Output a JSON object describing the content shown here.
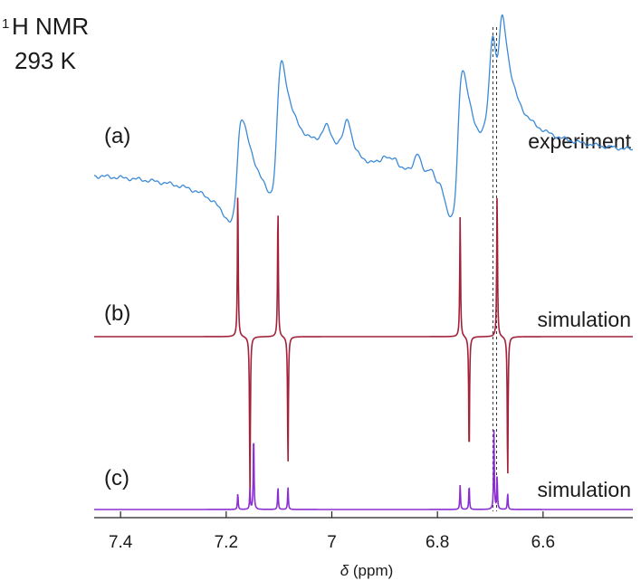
{
  "chart_data": {
    "type": "line",
    "title_line1_sup": "1",
    "title_line1": "H NMR",
    "title_line2": "293 K",
    "xlabel_symbol": "δ",
    "xlabel_unit": " (ppm)",
    "xlim": [
      7.45,
      6.43
    ],
    "x_direction": "reversed",
    "xticks": [
      7.4,
      7.2,
      7,
      6.8,
      6.6
    ],
    "xtick_labels": [
      "7.4",
      "7.2",
      "7",
      "6.8",
      "6.6"
    ],
    "reference_lines_ppm": [
      6.695,
      6.688
    ],
    "panels": [
      {
        "id": "a",
        "label": "(a)",
        "name": "experiment",
        "color": "#3b8ad8",
        "kind": "absorption-dispersion mixed experimental",
        "baseline_offset": 0,
        "peaks": [
          {
            "x": 7.178,
            "dispersion": -0.95,
            "absorption": 0.3,
            "width": 0.011
          },
          {
            "x": 7.102,
            "dispersion": -1.15,
            "absorption": 0.5,
            "width": 0.011
          },
          {
            "x": 7.01,
            "dispersion": 0.0,
            "absorption": 0.22,
            "width": 0.012
          },
          {
            "x": 6.97,
            "dispersion": 0.0,
            "absorption": 0.35,
            "width": 0.01
          },
          {
            "x": 6.9,
            "dispersion": 0.0,
            "absorption": 0.1,
            "width": 0.009
          },
          {
            "x": 6.88,
            "dispersion": 0.0,
            "absorption": 0.1,
            "width": 0.009
          },
          {
            "x": 6.838,
            "dispersion": 0.0,
            "absorption": 0.24,
            "width": 0.009
          },
          {
            "x": 6.812,
            "dispersion": 0.0,
            "absorption": 0.18,
            "width": 0.009
          },
          {
            "x": 6.792,
            "dispersion": 0.0,
            "absorption": 0.14,
            "width": 0.009
          },
          {
            "x": 6.76,
            "dispersion": -1.35,
            "absorption": 0.45,
            "width": 0.011
          },
          {
            "x": 6.696,
            "dispersion": -0.25,
            "absorption": 1.25,
            "width": 0.01
          },
          {
            "x": 6.682,
            "dispersion": -1.05,
            "absorption": 0.4,
            "width": 0.01
          }
        ]
      },
      {
        "id": "b",
        "label": "(b)",
        "name": "simulation",
        "color": "#a3223a",
        "kind": "antiphase doublets",
        "peaks": [
          {
            "x": 7.178,
            "amp": 1.65
          },
          {
            "x": 7.155,
            "amp": -1.75
          },
          {
            "x": 7.102,
            "amp": 1.45
          },
          {
            "x": 7.083,
            "amp": -1.45
          },
          {
            "x": 6.757,
            "amp": 1.35
          },
          {
            "x": 6.74,
            "amp": -1.35
          },
          {
            "x": 6.687,
            "amp": 1.6
          },
          {
            "x": 6.667,
            "amp": -1.6
          }
        ]
      },
      {
        "id": "c",
        "label": "(c)",
        "name": "simulation",
        "color": "#8a2fd1",
        "kind": "absorption stick spectrum",
        "peaks": [
          {
            "x": 7.178,
            "amp": 0.2
          },
          {
            "x": 7.155,
            "amp": 0.25
          },
          {
            "x": 7.148,
            "amp": 0.95
          },
          {
            "x": 7.102,
            "amp": 0.28
          },
          {
            "x": 7.083,
            "amp": 0.28
          },
          {
            "x": 6.757,
            "amp": 0.3
          },
          {
            "x": 6.74,
            "amp": 0.3
          },
          {
            "x": 6.693,
            "amp": 0.95
          },
          {
            "x": 6.687,
            "amp": 0.4
          },
          {
            "x": 6.667,
            "amp": 0.2
          }
        ]
      }
    ]
  }
}
